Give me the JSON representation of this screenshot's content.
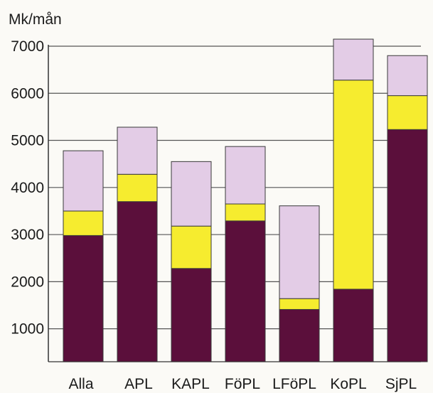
{
  "chart_data": {
    "type": "bar",
    "stacked": true,
    "title": "",
    "xlabel": "",
    "ylabel": "Mk/mån",
    "ylim": [
      300,
      7000
    ],
    "yticks": [
      1000,
      2000,
      3000,
      4000,
      5000,
      6000,
      7000
    ],
    "grid": true,
    "legend": "none",
    "categories": [
      "Alla",
      "APL",
      "KAPL",
      "FöPL",
      "LFöPL",
      "KoPL",
      "SjPL"
    ],
    "series": [
      {
        "color": "#5b0f3b",
        "values": [
          2680,
          3400,
          1980,
          2990,
          1110,
          1540,
          4930
        ]
      },
      {
        "color": "#f6ec2f",
        "values": [
          520,
          580,
          900,
          360,
          230,
          4440,
          720
        ]
      },
      {
        "color": "#e3cce6",
        "values": [
          1280,
          1000,
          1370,
          1220,
          1970,
          870,
          850
        ]
      }
    ]
  }
}
